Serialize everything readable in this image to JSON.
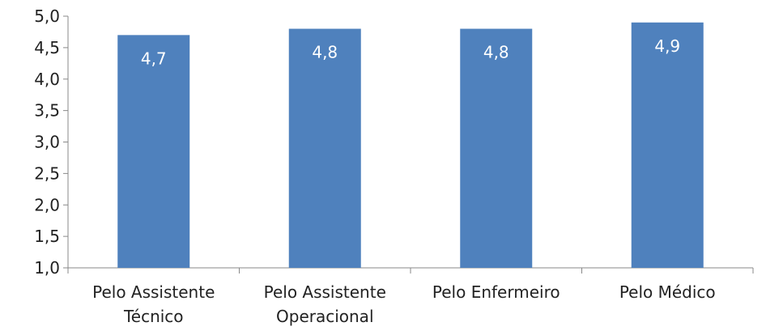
{
  "chart_data": {
    "type": "bar",
    "categories": [
      [
        "Pelo Assistente",
        "Técnico"
      ],
      [
        "Pelo Assistente",
        "Operacional"
      ],
      [
        "Pelo Enfermeiro"
      ],
      [
        "Pelo Médico"
      ]
    ],
    "values": [
      4.7,
      4.8,
      4.8,
      4.9
    ],
    "data_labels": [
      "4,7",
      "4,8",
      "4,8",
      "4,9"
    ],
    "ylim": [
      1.0,
      5.0
    ],
    "y_ticks": [
      1.0,
      1.5,
      2.0,
      2.5,
      3.0,
      3.5,
      4.0,
      4.5,
      5.0
    ],
    "y_tick_labels": [
      "1,0",
      "1,5",
      "2,0",
      "2,5",
      "3,0",
      "3,5",
      "4,0",
      "4,5",
      "5,0"
    ],
    "grid": false,
    "legend": "none",
    "colors": {
      "bar": "#4f81bd",
      "axis": "#888888",
      "data_label": "#ffffff",
      "text": "#222222"
    }
  }
}
